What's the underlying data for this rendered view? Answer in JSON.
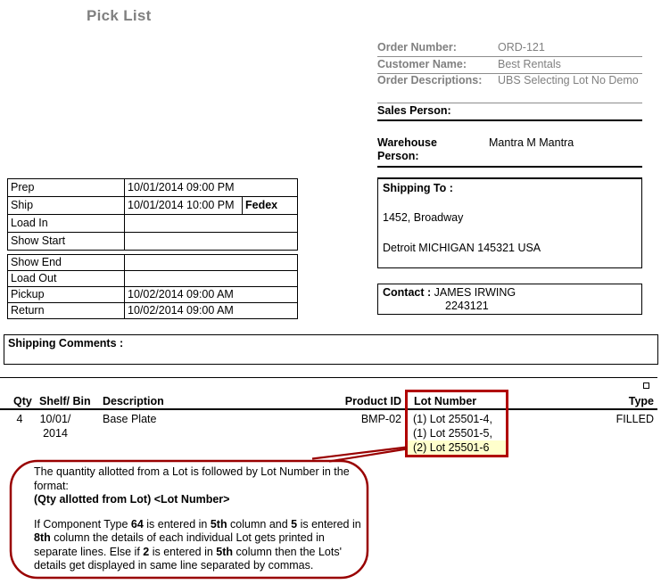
{
  "title": "Pick List",
  "order_info": {
    "rows": [
      {
        "label": "Order Number:",
        "value": "ORD-121"
      },
      {
        "label": "Customer Name:",
        "value": "Best Rentals"
      },
      {
        "label": "Order Descriptions:",
        "value": "UBS Selecting Lot No Demo"
      }
    ],
    "sales_person_label": "Sales Person:",
    "sales_person_value": "",
    "warehouse_person_label": "Warehouse Person:",
    "warehouse_person_value": "Mantra M Mantra"
  },
  "schedule": {
    "table1": [
      {
        "label": "Prep",
        "value": "10/01/2014 09:00 PM",
        "extra": ""
      },
      {
        "label": "Ship",
        "value": "10/01/2014 10:00 PM",
        "extra": "Fedex"
      },
      {
        "label": "Load In",
        "value": "",
        "extra": ""
      },
      {
        "label": "Show Start",
        "value": "",
        "extra": ""
      }
    ],
    "table2": [
      {
        "label": "Show End",
        "value": ""
      },
      {
        "label": "Load Out",
        "value": ""
      },
      {
        "label": "Pickup",
        "value": "10/02/2014 09:00 AM"
      },
      {
        "label": "Return",
        "value": "10/02/2014 09:00 AM"
      }
    ]
  },
  "shipping_to": {
    "label": "Shipping To :",
    "address_line1": "1452, Broadway",
    "address_line2": "Detroit MICHIGAN 145321 USA"
  },
  "contact": {
    "label": "Contact :",
    "name": "JAMES IRWING",
    "phone": "2243121"
  },
  "shipping_comments_label": "Shipping Comments :",
  "items_table": {
    "headers": [
      "Qty",
      "Shelf/ Bin",
      "Description",
      "Product ID",
      "Lot Number",
      "Type"
    ],
    "rows": [
      {
        "qty": "4",
        "shelf_bin": [
          "10/01/",
          "2014"
        ],
        "description": "Base Plate",
        "product_id": "BMP-02",
        "lots": [
          {
            "text": "(1) Lot 25501-4,",
            "highlight": false
          },
          {
            "text": "(1) Lot 25501-5,",
            "highlight": false
          },
          {
            "text": "(2) Lot 25501-6",
            "highlight": true
          }
        ],
        "type": "FILLED"
      }
    ]
  },
  "annotation": {
    "paragraphs": [
      [
        {
          "t": "The quantity allotted from a Lot is followed by Lot Number in the format:",
          "b": false
        }
      ],
      [
        {
          "t": "(Qty allotted from Lot) <Lot Number>",
          "b": true
        }
      ],
      [],
      [
        {
          "t": "If Component Type ",
          "b": false
        },
        {
          "t": "64",
          "b": true
        },
        {
          "t": " is entered in ",
          "b": false
        },
        {
          "t": "5th",
          "b": true
        },
        {
          "t": " column and ",
          "b": false
        },
        {
          "t": "5",
          "b": true
        },
        {
          "t": " is entered in ",
          "b": false
        },
        {
          "t": "8th",
          "b": true
        },
        {
          "t": " column the details of each individual Lot gets printed in separate lines. Else if ",
          "b": false
        },
        {
          "t": "2",
          "b": true
        },
        {
          "t": " is entered in ",
          "b": false
        },
        {
          "t": "5th",
          "b": true
        },
        {
          "t": " column then the Lots' details get displayed in same line separated by commas.",
          "b": false
        }
      ]
    ]
  },
  "colors": {
    "gray_text": "#808080",
    "annotation_red": "#990000",
    "rect_red": "#b00000",
    "highlight_yellow": "#ffffcc"
  }
}
